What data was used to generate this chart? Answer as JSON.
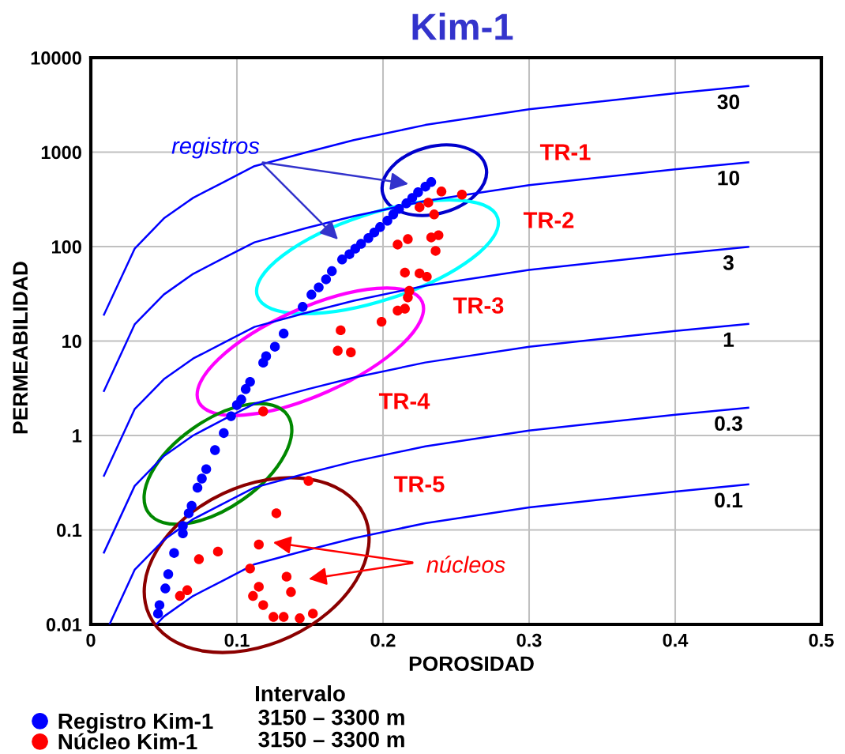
{
  "chart_data": {
    "type": "scatter",
    "title": "Kim-1",
    "xlabel": "POROSIDAD",
    "ylabel": "PERMEABILIDAD",
    "log": "y",
    "xlim": [
      0,
      0.5
    ],
    "ylim": [
      0.01,
      10000
    ],
    "xticks": [
      0,
      0.1,
      0.2,
      0.3,
      0.4,
      0.5
    ],
    "yticks": [
      0.01,
      0.1,
      1,
      10,
      100,
      1000,
      10000
    ],
    "grid": true,
    "legend": "bottom left",
    "marker": "circle",
    "annotations": [
      "registros",
      "núcleos",
      "TR-1",
      "TR-2",
      "TR-3",
      "TR-4",
      "TR-5",
      "Intervalo",
      "3150 – 3300 m",
      "3150 – 3300 m"
    ],
    "series": [
      {
        "name": "Registro Kim-1",
        "color": "#0000ff",
        "x": [
          0.233,
          0.229,
          0.224,
          0.22,
          0.216,
          0.211,
          0.207,
          0.203,
          0.198,
          0.194,
          0.19,
          0.185,
          0.181,
          0.177,
          0.172,
          0.165,
          0.161,
          0.156,
          0.151,
          0.145,
          0.132,
          0.126,
          0.12,
          0.118,
          0.109,
          0.106,
          0.103,
          0.1,
          0.096,
          0.091,
          0.085,
          0.079,
          0.076,
          0.073,
          0.069,
          0.067,
          0.063,
          0.063,
          0.057,
          0.053,
          0.051,
          0.047,
          0.046
        ],
        "values": [
          483,
          431,
          376,
          328,
          287,
          251,
          219,
          188,
          161,
          141,
          123,
          107,
          95,
          83,
          73,
          55,
          45,
          37,
          31,
          23,
          12,
          8.7,
          6.9,
          5.9,
          3.7,
          3.1,
          2.4,
          2.1,
          1.6,
          1.06,
          0.7,
          0.44,
          0.35,
          0.28,
          0.18,
          0.15,
          0.11,
          0.092,
          0.057,
          0.034,
          0.024,
          0.016,
          0.013
        ]
      },
      {
        "name": "Núcleo Kim-1",
        "color": "#ff0000",
        "x": [
          0.24,
          0.254,
          0.231,
          0.225,
          0.235,
          0.238,
          0.233,
          0.217,
          0.21,
          0.236,
          0.215,
          0.225,
          0.23,
          0.218,
          0.217,
          0.215,
          0.21,
          0.199,
          0.171,
          0.169,
          0.178,
          0.118,
          0.149,
          0.127,
          0.115,
          0.087,
          0.074,
          0.109,
          0.134,
          0.066,
          0.061,
          0.115,
          0.111,
          0.137,
          0.118,
          0.125,
          0.132,
          0.143,
          0.152
        ],
        "values": [
          383,
          355,
          292,
          261,
          219,
          132,
          125,
          120,
          105,
          90,
          53,
          52,
          48,
          34,
          29,
          22,
          21,
          16,
          13,
          7.9,
          7.6,
          1.8,
          0.33,
          0.15,
          0.07,
          0.059,
          0.049,
          0.039,
          0.032,
          0.023,
          0.02,
          0.025,
          0.02,
          0.022,
          0.016,
          0.012,
          0.012,
          0.0116,
          0.013
        ]
      },
      {
        "name": "30",
        "type": "line",
        "marker": "none",
        "color": "#0000ff",
        "x": [
          0.009,
          0.03,
          0.05,
          0.07,
          0.091,
          0.112,
          0.148,
          0.18,
          0.229,
          0.3,
          0.4,
          0.45
        ],
        "values": [
          19,
          95,
          199,
          328,
          483,
          711,
          1000,
          1340,
          1940,
          2850,
          4200,
          5000
        ]
      },
      {
        "name": "10",
        "type": "line",
        "marker": "none",
        "color": "#0000ff",
        "x": [
          0.009,
          0.03,
          0.05,
          0.07,
          0.091,
          0.112,
          0.148,
          0.18,
          0.229,
          0.3,
          0.4,
          0.45
        ],
        "values": [
          2.96,
          15.0,
          31.1,
          51.4,
          75.7,
          111,
          158,
          210,
          304,
          447,
          658,
          782
        ]
      },
      {
        "name": "3",
        "type": "line",
        "marker": "none",
        "color": "#0000ff",
        "x": [
          0.009,
          0.03,
          0.05,
          0.07,
          0.091,
          0.112,
          0.148,
          0.18,
          0.229,
          0.3,
          0.4,
          0.45
        ],
        "values": [
          0.375,
          1.9,
          3.94,
          6.52,
          9.59,
          14.1,
          20.0,
          26.7,
          38.5,
          56.6,
          83.4,
          99.1
        ]
      },
      {
        "name": "1",
        "type": "line",
        "marker": "none",
        "color": "#0000ff",
        "x": [
          0.009,
          0.03,
          0.05,
          0.07,
          0.091,
          0.112,
          0.148,
          0.18,
          0.229,
          0.3,
          0.4,
          0.45
        ],
        "values": [
          0.0577,
          0.292,
          0.607,
          1.0,
          1.48,
          2.17,
          3.08,
          4.1,
          5.93,
          8.71,
          12.8,
          15.2
        ]
      },
      {
        "name": "0.3",
        "type": "line",
        "marker": "none",
        "color": "#0000ff",
        "x": [
          0.0128,
          0.03,
          0.05,
          0.07,
          0.091,
          0.112,
          0.148,
          0.18,
          0.229,
          0.3,
          0.4,
          0.45
        ],
        "values": [
          0.01,
          0.0378,
          0.0785,
          0.13,
          0.191,
          0.281,
          0.398,
          0.531,
          0.767,
          1.13,
          1.66,
          1.97
        ]
      },
      {
        "name": "0.1",
        "type": "line",
        "marker": "none",
        "color": "#0000ff",
        "x": [
          0.0448,
          0.05,
          0.07,
          0.091,
          0.112,
          0.148,
          0.18,
          0.229,
          0.3,
          0.4,
          0.45
        ],
        "values": [
          0.01,
          0.0121,
          0.02,
          0.0294,
          0.0433,
          0.0612,
          0.0817,
          0.118,
          0.173,
          0.255,
          0.303
        ]
      }
    ]
  }
}
